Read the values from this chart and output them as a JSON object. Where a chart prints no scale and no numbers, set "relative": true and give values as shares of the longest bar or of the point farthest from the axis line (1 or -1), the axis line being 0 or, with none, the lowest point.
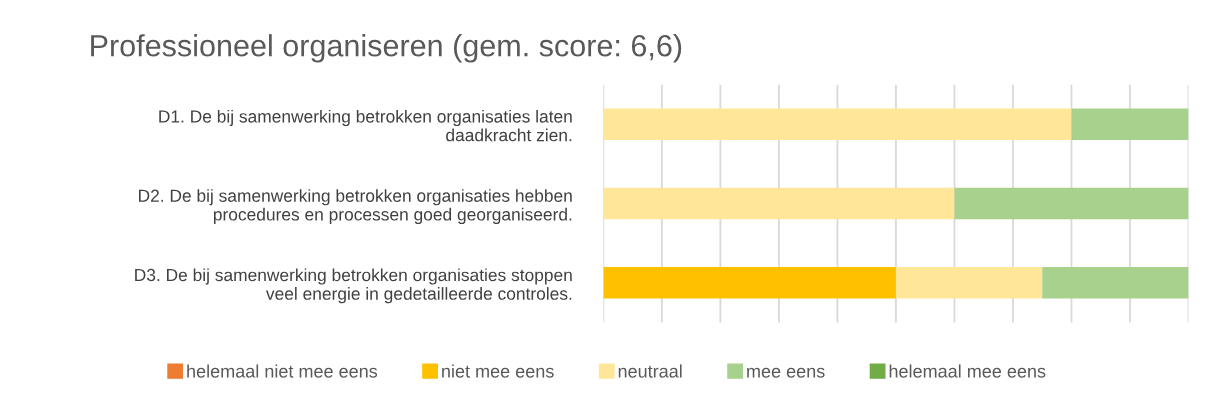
{
  "chart_data": {
    "type": "bar",
    "orientation": "horizontal",
    "stacked": true,
    "relative": true,
    "grid": "x",
    "legend": "bottom",
    "title": "Professioneel organiseren (gem. score: 6,6)",
    "categories": [
      "D1. De bij samenwerking betrokken organisaties laten\ndaadkracht zien.",
      "D2. De bij samenwerking betrokken organisaties hebben\nprocedures en processen goed georganiseerd.",
      "D3. De bij samenwerking betrokken organisaties stoppen\nveel energie in gedetailleerde controles."
    ],
    "series": [
      {
        "name": "helemaal niet mee eens",
        "color": "#ed7d31",
        "values": [
          0,
          0,
          0
        ]
      },
      {
        "name": "niet mee eens",
        "color": "#ffc000",
        "values": [
          0,
          0,
          0.5
        ]
      },
      {
        "name": "neutraal",
        "color": "#ffe699",
        "values": [
          0.8,
          0.6,
          0.25
        ]
      },
      {
        "name": "mee eens",
        "color": "#a9d18e",
        "values": [
          0.2,
          0.4,
          0.25
        ]
      },
      {
        "name": "helemaal mee eens",
        "color": "#70ad47",
        "values": [
          0,
          0,
          0
        ]
      }
    ]
  }
}
